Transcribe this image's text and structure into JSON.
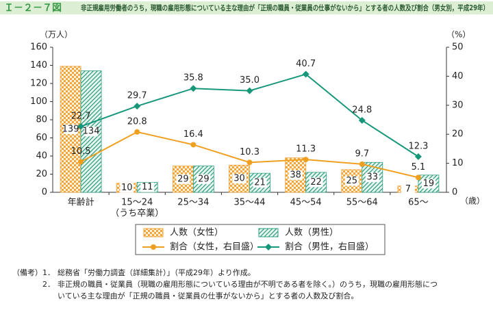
{
  "figure_label": "Ｉ－２－７図",
  "chart_data": {
    "type": "bar",
    "title": "非正規雇用労働者のうち，現職の雇用形態についている主な理由が「正規の職員・従業員の仕事がないから」とする者の人数及び割合（男女別，平成29年）",
    "y_label": "（万人）",
    "y2_label": "（%）",
    "x_unit": "（歳）",
    "categories": [
      "年齢計",
      "15～24",
      "25～34",
      "35～44",
      "45～54",
      "55～64",
      "65～"
    ],
    "category_notes": [
      null,
      "（うち卒業）",
      null,
      null,
      null,
      null,
      null
    ],
    "ylim": [
      0,
      160
    ],
    "yticks": [
      0,
      20,
      40,
      60,
      80,
      100,
      120,
      140,
      160
    ],
    "y2lim": [
      0,
      50
    ],
    "y2ticks": [
      0,
      10,
      20,
      30,
      40,
      50
    ],
    "series": [
      {
        "name": "人数（女性）",
        "type": "bar",
        "pattern": "checker",
        "color": "#f3a43a",
        "values": [
          139,
          10,
          29,
          30,
          38,
          25,
          7
        ]
      },
      {
        "name": "人数（男性）",
        "type": "bar",
        "pattern": "hatch",
        "color": "#2f9e80",
        "values": [
          134,
          11,
          29,
          21,
          22,
          33,
          19
        ]
      },
      {
        "name": "割合（女性，右目盛）",
        "type": "line",
        "marker": "circle",
        "axis": "y2",
        "color": "#f0a020",
        "values": [
          10.5,
          20.8,
          16.4,
          10.3,
          11.3,
          9.7,
          5.1
        ]
      },
      {
        "name": "割合（男性，右目盛）",
        "type": "line",
        "marker": "diamond",
        "axis": "y2",
        "color": "#17977a",
        "values": [
          22.7,
          29.7,
          35.8,
          35.0,
          40.7,
          24.8,
          12.3
        ],
        "value_labels": [
          "22.7",
          "29.7",
          "35.8",
          "35.0",
          "40.7",
          "24.8",
          "12.3"
        ]
      }
    ]
  },
  "notes_label": "（備考）",
  "notes": [
    {
      "num": "1．",
      "lines": [
        "総務省「労働力調査（詳細集計）」（平成29年）より作成。"
      ]
    },
    {
      "num": "2．",
      "lines": [
        "非正規の職員・従業員（現職の雇用形態についている理由が不明である者を除く。）のうち，現職の雇用形態につ",
        "いている主な理由が「正規の職員・従業員の仕事がないから」とする者の人数及び割合。"
      ]
    }
  ]
}
